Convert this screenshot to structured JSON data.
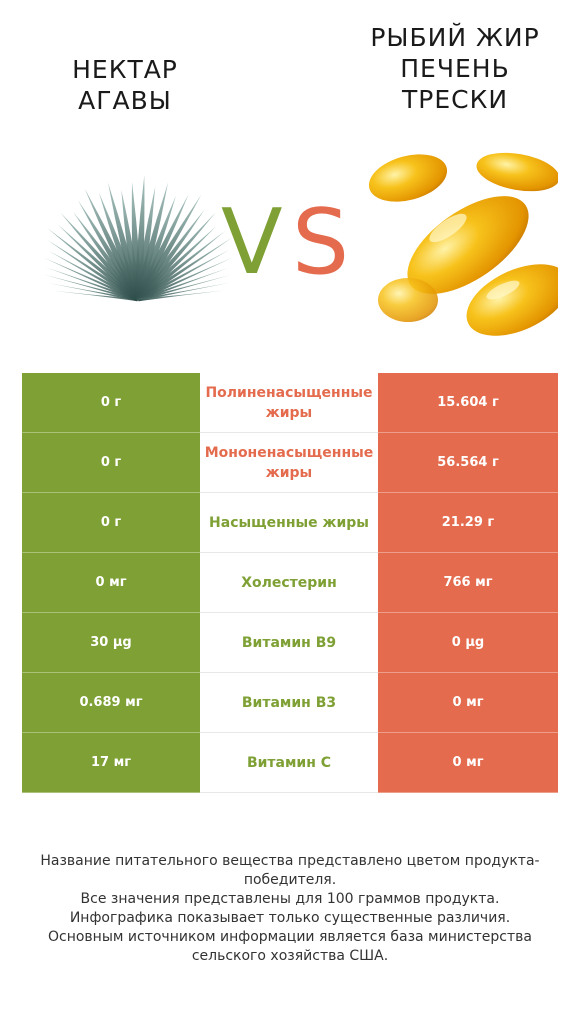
{
  "products": {
    "left": {
      "name": "НЕКТАР\nАГАВЫ",
      "color": "#7ea034",
      "image_icon": "agave-plant-icon"
    },
    "right": {
      "name": "РЫБИЙ ЖИР\nПЕЧЕНЬ\nТРЕСКИ",
      "color": "#e46b4d",
      "image_icon": "fish-oil-capsules-icon"
    },
    "vs_v": "V",
    "vs_s": "S"
  },
  "rows": [
    {
      "left": "0 г",
      "nutrient": "Полиненасыщенные жиры",
      "right": "15.604 г",
      "winner": "right"
    },
    {
      "left": "0 г",
      "nutrient": "Мононенасыщенные жиры",
      "right": "56.564 г",
      "winner": "right"
    },
    {
      "left": "0 г",
      "nutrient": "Насыщенные жиры",
      "right": "21.29 г",
      "winner": "left"
    },
    {
      "left": "0 мг",
      "nutrient": "Холестерин",
      "right": "766 мг",
      "winner": "left"
    },
    {
      "left": "30 µg",
      "nutrient": "Витамин B9",
      "right": "0 µg",
      "winner": "left"
    },
    {
      "left": "0.689 мг",
      "nutrient": "Витамин B3",
      "right": "0 мг",
      "winner": "left"
    },
    {
      "left": "17 мг",
      "nutrient": "Витамин C",
      "right": "0 мг",
      "winner": "left"
    }
  ],
  "footer": {
    "line1": "Название питательного вещества представлено цветом продукта-победителя.",
    "line2": "Все значения представлены для 100 граммов продукта.",
    "line3": "Инфографика показывает только существенные различия.",
    "line4": "Основным источником информации является база министерства сельского хозяйства США."
  }
}
